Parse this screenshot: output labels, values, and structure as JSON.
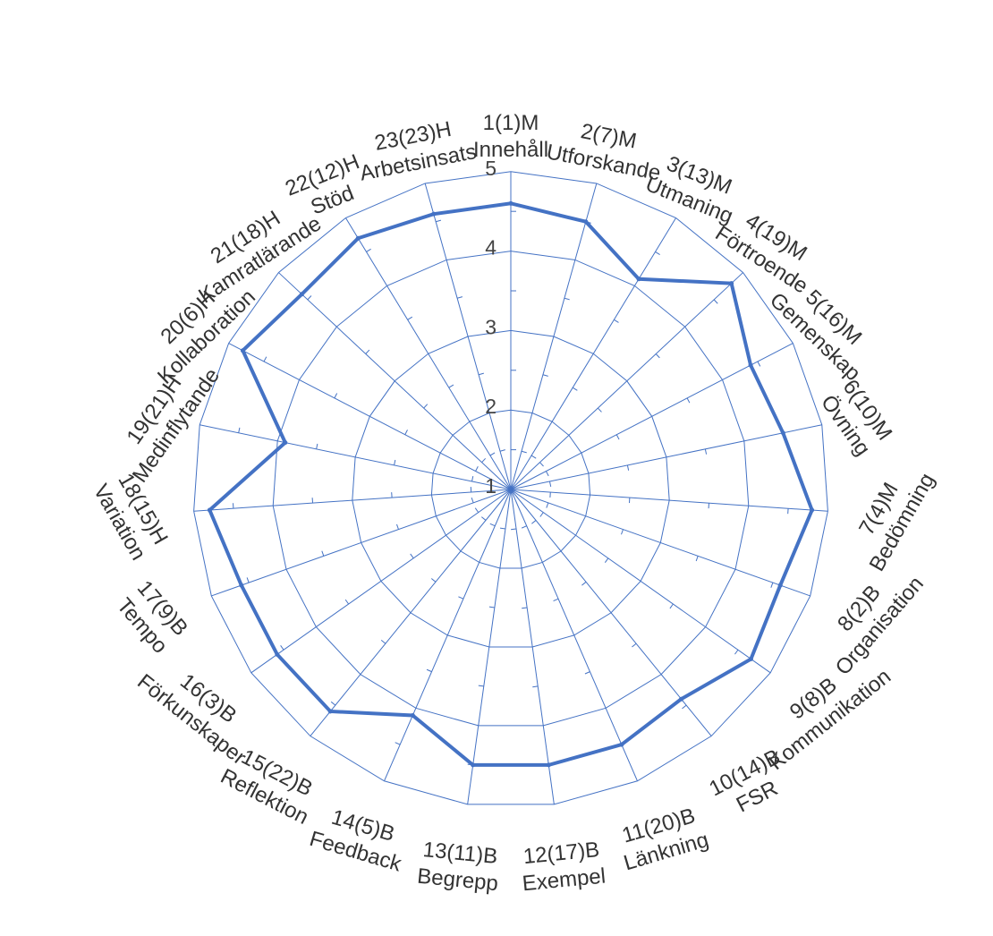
{
  "chart_data": {
    "type": "radar",
    "scale": {
      "min": 1,
      "max": 5,
      "ticks": [
        "1",
        "2",
        "3",
        "4",
        "5"
      ]
    },
    "grid": true,
    "legend": "none",
    "colors": {
      "series": "#4472C4",
      "grid": "#4472C4",
      "text": "#333333"
    },
    "categories": [
      [
        "1(1)M",
        "Innehåll"
      ],
      [
        "2(7)M",
        "Utforskande"
      ],
      [
        "3(13)M",
        "Utmaning"
      ],
      [
        "4(19)M",
        "Förtroende"
      ],
      [
        "5(16)M",
        "Gemenskap"
      ],
      [
        "6(10)M",
        "Övning"
      ],
      [
        "7(4)M",
        "Bedömning"
      ],
      [
        "8(2)B",
        "Organisation"
      ],
      [
        "9(8)B",
        "Kommunikation"
      ],
      [
        "10(14)B",
        "FSR"
      ],
      [
        "11(20)B",
        "Länkning"
      ],
      [
        "12(17)B",
        "Exempel"
      ],
      [
        "13(11)B",
        "Begrepp"
      ],
      [
        "14(5)B",
        "Feedback"
      ],
      [
        "15(22)B",
        "Reflektion"
      ],
      [
        "16(3)B",
        "Förkunskaper"
      ],
      [
        "17(9)B",
        "Tempo"
      ],
      [
        "18(15)H",
        "Variation"
      ],
      [
        "19(21)H",
        "Medinflytande"
      ],
      [
        "20(6)H",
        "Kollaboration"
      ],
      [
        "21(18)H",
        "Kamratlärande"
      ],
      [
        "22(12)H",
        "Stöd"
      ],
      [
        "23(23)H",
        "Arbetsinsats"
      ]
    ],
    "series": [
      {
        "values": [
          4.6,
          4.5,
          4.1,
          4.8,
          4.4,
          4.5,
          4.8,
          4.6,
          4.7,
          4.4,
          4.5,
          4.5,
          4.5,
          4.1,
          4.6,
          4.6,
          4.6,
          4.8,
          3.9,
          4.8,
          4.6,
          4.7,
          4.6
        ]
      }
    ]
  }
}
